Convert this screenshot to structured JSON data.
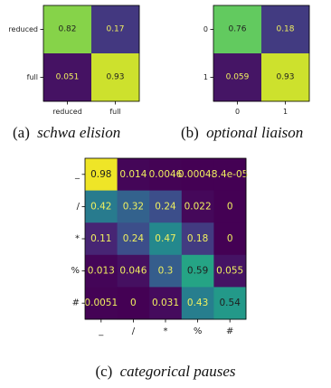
{
  "colors": {
    "colormap": "viridis",
    "text_on_light": "#1f1f1f",
    "text_on_dark": "#f0f060"
  },
  "captions": {
    "a_prefix": "(a)",
    "a_title": "schwa elision",
    "b_prefix": "(b)",
    "b_title": "optional liaison",
    "c_prefix": "(c)",
    "c_title": "categorical pauses"
  },
  "chart_data": [
    {
      "type": "heatmap",
      "title": "schwa elision",
      "row_labels": [
        "reduced",
        "full"
      ],
      "col_labels": [
        "reduced",
        "full"
      ],
      "values": [
        [
          0.82,
          0.17
        ],
        [
          0.051,
          0.93
        ]
      ],
      "cell_text": [
        [
          "0.82",
          "0.17"
        ],
        [
          "0.051",
          "0.93"
        ]
      ],
      "vmin": 0,
      "vmax": 1
    },
    {
      "type": "heatmap",
      "title": "optional liaison",
      "row_labels": [
        "0",
        "1"
      ],
      "col_labels": [
        "0",
        "1"
      ],
      "values": [
        [
          0.76,
          0.18
        ],
        [
          0.059,
          0.93
        ]
      ],
      "cell_text": [
        [
          "0.76",
          "0.18"
        ],
        [
          "0.059",
          "0.93"
        ]
      ],
      "vmin": 0,
      "vmax": 1
    },
    {
      "type": "heatmap",
      "title": "categorical pauses",
      "row_labels": [
        "_",
        "/",
        "*",
        "%",
        "#"
      ],
      "col_labels": [
        "_",
        "/",
        "*",
        "%",
        "#"
      ],
      "values": [
        [
          0.98,
          0.014,
          0.0046,
          0.00048,
          3.4e-05
        ],
        [
          0.42,
          0.32,
          0.24,
          0.022,
          0
        ],
        [
          0.11,
          0.24,
          0.47,
          0.18,
          0
        ],
        [
          0.013,
          0.046,
          0.3,
          0.59,
          0.055
        ],
        [
          0.0051,
          0,
          0.031,
          0.43,
          0.54
        ]
      ],
      "cell_text": [
        [
          "0.98",
          "0.014",
          "0.0046",
          "0.00048",
          "3.4e-05"
        ],
        [
          "0.42",
          "0.32",
          "0.24",
          "0.022",
          "0"
        ],
        [
          "0.11",
          "0.24",
          "0.47",
          "0.18",
          "0"
        ],
        [
          "0.013",
          "0.046",
          "0.3",
          "0.59",
          "0.055"
        ],
        [
          "0.0051",
          "0",
          "0.031",
          "0.43",
          "0.54"
        ]
      ],
      "vmin": 0,
      "vmax": 1
    }
  ]
}
